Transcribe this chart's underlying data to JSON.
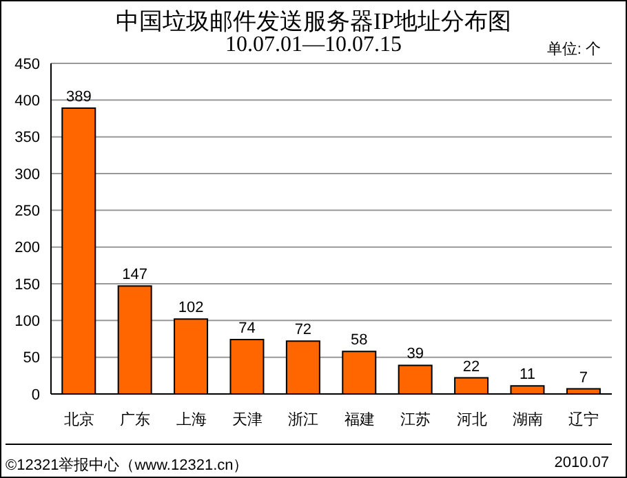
{
  "chart_data": {
    "type": "bar",
    "title": "中国垃圾邮件发送服务器IP地址分布图",
    "subtitle": "10.07.01—10.07.15",
    "categories": [
      "北京",
      "广东",
      "上海",
      "天津",
      "浙江",
      "福建",
      "江苏",
      "河北",
      "湖南",
      "辽宁"
    ],
    "values": [
      389,
      147,
      102,
      74,
      72,
      58,
      39,
      22,
      11,
      7
    ],
    "color": "#ff6600",
    "ylim": [
      0,
      450
    ],
    "yticks": [
      0,
      50,
      100,
      150,
      200,
      250,
      300,
      350,
      400,
      450
    ],
    "grid": "y",
    "data_labels": true,
    "annotations": [
      "单位: 个",
      "©12321举报中心（www.12321.cn）",
      "2010.07"
    ]
  }
}
